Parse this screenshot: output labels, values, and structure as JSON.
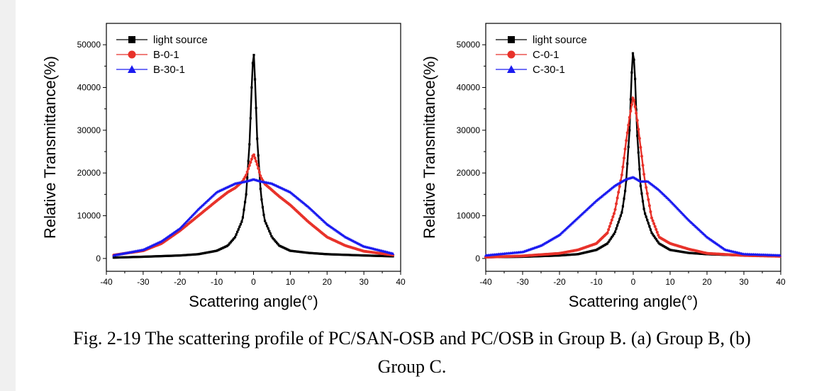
{
  "caption": {
    "line1": "Fig. 2-19 The scattering profile of PC/SAN-OSB and PC/OSB in Group B. (a) Group B, (b)",
    "line2": "Group C."
  },
  "chart_data": [
    {
      "type": "line",
      "xlabel": "Scattering angle(°)",
      "ylabel": "Relative Transmittance(%)",
      "xlim": [
        -40,
        40
      ],
      "ylim": [
        -3000,
        55000
      ],
      "xticks": [
        -40,
        -30,
        -20,
        -10,
        0,
        10,
        20,
        30,
        40
      ],
      "yticks": [
        0,
        10000,
        20000,
        30000,
        40000,
        50000
      ],
      "legend_position": "top-left",
      "grid": false,
      "series": [
        {
          "name": "light source",
          "color": "#000000",
          "marker": "square",
          "x": [
            -38,
            -30,
            -20,
            -15,
            -10,
            -7,
            -5,
            -3,
            -2,
            -1,
            -0.5,
            0,
            0.5,
            1,
            2,
            3,
            5,
            7,
            10,
            15,
            20,
            30,
            38
          ],
          "y": [
            200,
            400,
            700,
            1000,
            1800,
            3000,
            5000,
            9000,
            15000,
            28000,
            40000,
            49500,
            40000,
            28000,
            15000,
            9000,
            5000,
            3000,
            1800,
            1300,
            1000,
            700,
            500
          ]
        },
        {
          "name": "B-0-1",
          "color": "#e8322a",
          "marker": "circle",
          "x": [
            -38,
            -30,
            -25,
            -20,
            -15,
            -10,
            -7,
            -5,
            -3,
            -2,
            -1,
            0,
            1,
            2,
            3,
            5,
            7,
            10,
            15,
            20,
            25,
            30,
            38
          ],
          "y": [
            800,
            1800,
            3500,
            6500,
            10000,
            13500,
            15500,
            16500,
            18000,
            19500,
            22000,
            24500,
            22000,
            19000,
            17500,
            16000,
            14500,
            12500,
            8500,
            5000,
            3000,
            1700,
            800
          ]
        },
        {
          "name": "B-30-1",
          "color": "#1b1bf0",
          "marker": "triangle",
          "x": [
            -38,
            -30,
            -25,
            -20,
            -15,
            -10,
            -5,
            -2,
            0,
            2,
            5,
            10,
            15,
            20,
            25,
            30,
            38
          ],
          "y": [
            700,
            2000,
            4000,
            7000,
            11500,
            15500,
            17500,
            18000,
            18500,
            18000,
            17500,
            15500,
            12000,
            8000,
            5000,
            2800,
            1100
          ]
        }
      ]
    },
    {
      "type": "line",
      "xlabel": "Scattering angle(°)",
      "ylabel": "Relative Transmittance(%)",
      "xlim": [
        -40,
        40
      ],
      "ylim": [
        -3000,
        55000
      ],
      "xticks": [
        -40,
        -30,
        -20,
        -10,
        0,
        10,
        20,
        30,
        40
      ],
      "yticks": [
        0,
        10000,
        20000,
        30000,
        40000,
        50000
      ],
      "legend_position": "top-left",
      "grid": false,
      "series": [
        {
          "name": "light source",
          "color": "#000000",
          "marker": "square",
          "x": [
            -40,
            -30,
            -20,
            -15,
            -10,
            -7,
            -5,
            -3,
            -2,
            -1,
            -0.5,
            0,
            0.5,
            1,
            2,
            3,
            5,
            7,
            10,
            15,
            20,
            30,
            40
          ],
          "y": [
            300,
            400,
            700,
            1000,
            2000,
            3500,
            6000,
            11000,
            17000,
            30000,
            42000,
            49500,
            42000,
            30000,
            17000,
            11000,
            6000,
            3500,
            2000,
            1300,
            1000,
            700,
            500
          ]
        },
        {
          "name": "C-0-1",
          "color": "#e8322a",
          "marker": "circle",
          "x": [
            -40,
            -30,
            -20,
            -15,
            -10,
            -7,
            -5,
            -3,
            -2,
            -1,
            0,
            1,
            2,
            3,
            5,
            7,
            10,
            15,
            20,
            30,
            40
          ],
          "y": [
            300,
            600,
            1200,
            2000,
            3500,
            6000,
            11000,
            20000,
            27000,
            33000,
            38000,
            33000,
            26000,
            19000,
            9500,
            5000,
            3500,
            2200,
            1200,
            700,
            500
          ]
        },
        {
          "name": "C-30-1",
          "color": "#1b1bf0",
          "marker": "triangle",
          "x": [
            -40,
            -30,
            -25,
            -20,
            -15,
            -10,
            -5,
            -2,
            0,
            2,
            4,
            7,
            10,
            15,
            20,
            25,
            30,
            40
          ],
          "y": [
            700,
            1500,
            3000,
            5500,
            9500,
            13500,
            17000,
            18500,
            19000,
            18000,
            18000,
            16000,
            13500,
            9000,
            5000,
            2000,
            1000,
            700
          ]
        }
      ]
    }
  ]
}
